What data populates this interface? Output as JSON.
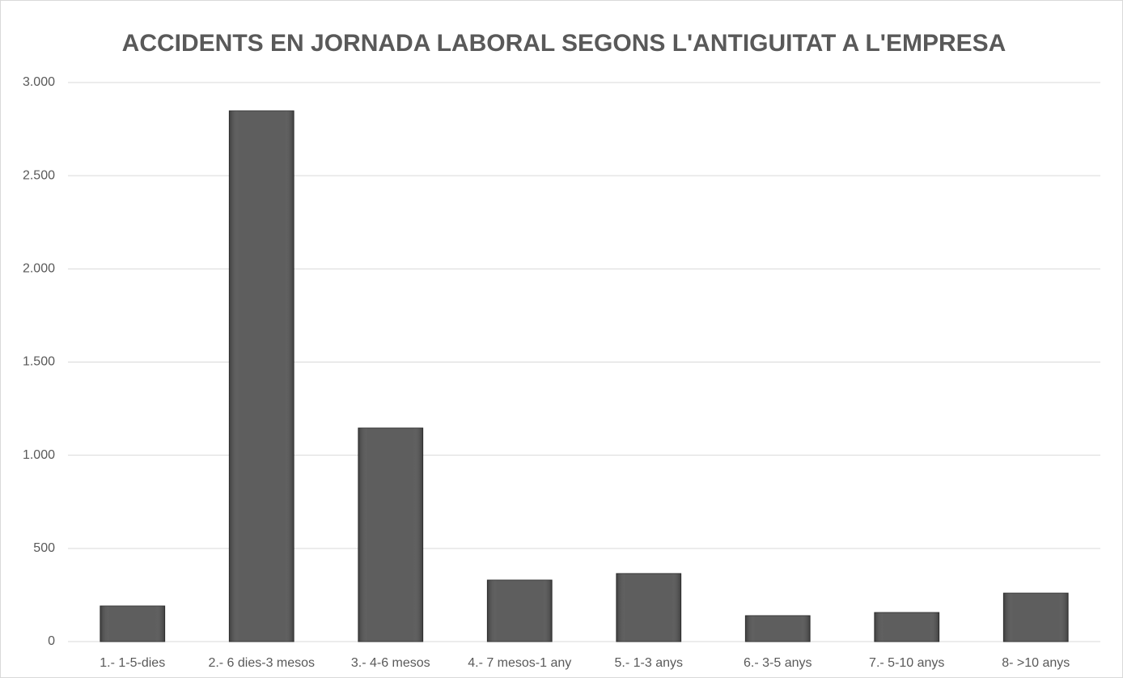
{
  "chart_data": {
    "type": "bar",
    "title": "ACCIDENTS EN JORNADA LABORAL SEGONS L'ANTIGUITAT A L'EMPRESA",
    "categories": [
      "1.- 1-5-dies",
      "2.- 6 dies-3 mesos",
      "3.- 4-6 mesos",
      "4.- 7 mesos-1 any",
      "5.- 1-3 anys",
      "6.- 3-5 anys",
      "7.- 5-10 anys",
      "8- >10 anys"
    ],
    "values": [
      191,
      2848,
      1146,
      330,
      365,
      139,
      156,
      260
    ],
    "color": "#555555",
    "ylim": [
      0,
      3000
    ],
    "yticks": [
      0,
      500,
      {
        "value": 1000,
        "label": "1.000"
      },
      {
        "value": 1500,
        "label": "1.500"
      },
      {
        "value": 2000,
        "label": "2.000"
      },
      {
        "value": 2500,
        "label": "2.500"
      },
      {
        "value": 3000,
        "label": "3.000"
      }
    ],
    "grid": true
  }
}
